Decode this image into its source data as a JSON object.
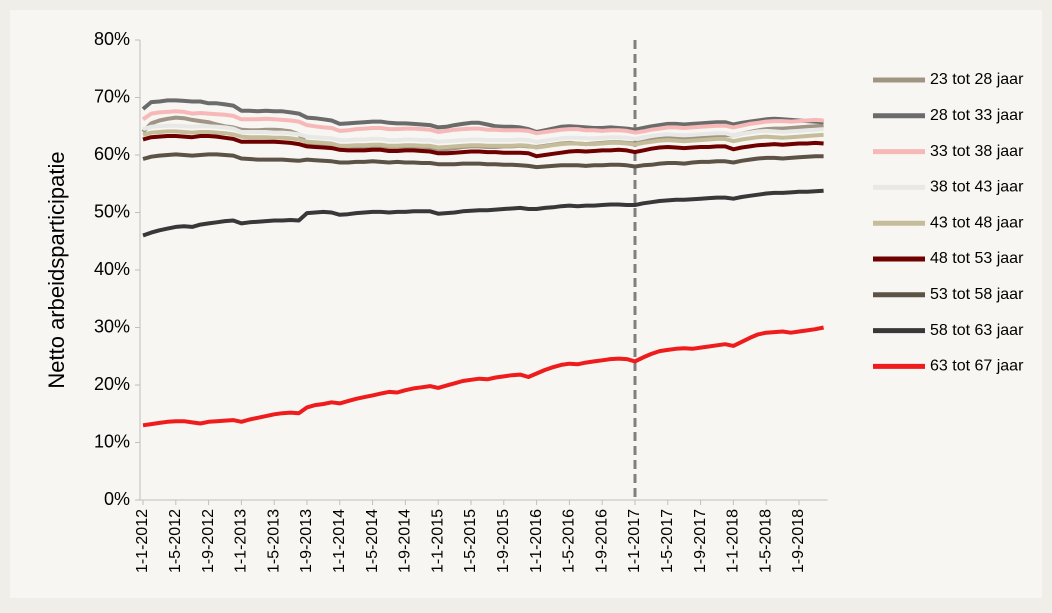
{
  "chart_data": {
    "type": "line",
    "y_label": "Netto arbeidsparticipatie",
    "categories": [
      "1-1-2012",
      null,
      null,
      null,
      "1-5-2012",
      null,
      null,
      null,
      "1-9-2012",
      null,
      null,
      null,
      "1-1-2013",
      null,
      null,
      null,
      "1-5-2013",
      null,
      null,
      null,
      "1-9-2013",
      null,
      null,
      null,
      "1-1-2014",
      null,
      null,
      null,
      "1-5-2014",
      null,
      null,
      null,
      "1-9-2014",
      null,
      null,
      null,
      "1-1-2015",
      null,
      null,
      null,
      "1-5-2015",
      null,
      null,
      null,
      "1-9-2015",
      null,
      null,
      null,
      "1-1-2016",
      null,
      null,
      null,
      "1-5-2016",
      null,
      null,
      null,
      "1-9-2016",
      null,
      null,
      null,
      "1-1-2017",
      null,
      null,
      null,
      "1-5-2017",
      null,
      null,
      null,
      "1-9-2017",
      null,
      null,
      null,
      "1-1-2018",
      null,
      null,
      null,
      "1-5-2018",
      null,
      null,
      null,
      "1-9-2018",
      null,
      null,
      null
    ],
    "ylim": [
      0,
      80
    ],
    "yticks": [
      {
        "value": 0,
        "label": "0%"
      },
      {
        "value": 10,
        "label": "10%"
      },
      {
        "value": 20,
        "label": "20%"
      },
      {
        "value": 30,
        "label": "30%"
      },
      {
        "value": 40,
        "label": "40%"
      },
      {
        "value": 50,
        "label": "50%"
      },
      {
        "value": 60,
        "label": "60%"
      },
      {
        "value": 70,
        "label": "70%"
      },
      {
        "value": 80,
        "label": "80%"
      }
    ],
    "reference_line_at": "1-1-2017",
    "legend": "right",
    "series": [
      {
        "name": "23 tot 28 jaar",
        "color": "#a09585",
        "values": [
          64.0,
          65.5,
          66.0,
          66.3,
          66.5,
          66.4,
          66.1,
          65.9,
          65.7,
          65.3,
          65.0,
          64.8,
          64.4,
          64.3,
          64.3,
          64.4,
          64.4,
          64.3,
          64.1,
          63.6,
          62.0,
          61.7,
          61.5,
          61.3,
          60.9,
          61.0,
          61.1,
          61.2,
          61.3,
          61.3,
          61.2,
          61.1,
          61.2,
          61.2,
          61.1,
          61.1,
          60.8,
          61.0,
          61.2,
          61.4,
          61.5,
          61.5,
          61.4,
          61.4,
          61.5,
          61.5,
          61.6,
          61.5,
          61.4,
          61.6,
          61.8,
          62.0,
          62.1,
          62.0,
          61.9,
          62.0,
          62.1,
          62.2,
          62.2,
          62.1,
          62.0,
          62.3,
          62.6,
          62.8,
          62.9,
          62.9,
          62.8,
          62.9,
          63.1,
          63.2,
          63.4,
          63.5,
          63.4,
          63.7,
          64.0,
          64.3,
          64.5,
          64.6,
          64.6,
          64.7,
          64.8,
          64.9,
          65.0,
          65.1
        ]
      },
      {
        "name": "28 tot 33 jaar",
        "color": "#6b6b6b",
        "values": [
          68.0,
          69.2,
          69.3,
          69.5,
          69.5,
          69.4,
          69.3,
          69.3,
          69.0,
          69.0,
          68.8,
          68.6,
          67.7,
          67.7,
          67.6,
          67.7,
          67.6,
          67.6,
          67.4,
          67.2,
          66.5,
          66.4,
          66.2,
          66.0,
          65.4,
          65.5,
          65.6,
          65.7,
          65.8,
          65.8,
          65.6,
          65.5,
          65.5,
          65.4,
          65.3,
          65.2,
          64.8,
          64.9,
          65.2,
          65.4,
          65.6,
          65.6,
          65.3,
          65.0,
          64.9,
          64.9,
          64.8,
          64.5,
          64.0,
          64.3,
          64.6,
          64.9,
          65.0,
          64.9,
          64.8,
          64.7,
          64.7,
          64.8,
          64.7,
          64.6,
          64.4,
          64.7,
          65.0,
          65.2,
          65.4,
          65.4,
          65.3,
          65.4,
          65.5,
          65.6,
          65.7,
          65.7,
          65.3,
          65.6,
          65.8,
          66.0,
          66.2,
          66.3,
          66.2,
          66.1,
          66.0,
          65.9,
          65.8,
          65.7
        ]
      },
      {
        "name": "33 tot 38 jaar",
        "color": "#f7b8b8",
        "values": [
          66.2,
          67.2,
          67.4,
          67.5,
          67.6,
          67.5,
          67.2,
          67.3,
          67.2,
          67.1,
          67.0,
          66.8,
          66.2,
          66.2,
          66.2,
          66.3,
          66.2,
          66.1,
          66.0,
          65.8,
          65.2,
          65.0,
          64.8,
          64.7,
          64.2,
          64.3,
          64.5,
          64.6,
          64.7,
          64.7,
          64.5,
          64.5,
          64.6,
          64.6,
          64.5,
          64.4,
          64.0,
          64.2,
          64.4,
          64.5,
          64.6,
          64.6,
          64.4,
          64.4,
          64.3,
          64.3,
          64.3,
          64.2,
          63.8,
          64.0,
          64.2,
          64.4,
          64.5,
          64.5,
          64.3,
          64.3,
          64.2,
          64.3,
          64.3,
          64.2,
          63.9,
          64.1,
          64.4,
          64.6,
          64.8,
          64.8,
          64.7,
          64.8,
          64.9,
          65.0,
          65.1,
          65.1,
          64.8,
          65.1,
          65.4,
          65.6,
          65.8,
          65.9,
          65.9,
          65.8,
          65.9,
          66.0,
          66.1,
          66.0
        ]
      },
      {
        "name": "38 tot 43 jaar",
        "color": "#e8e8e6",
        "values": [
          64.5,
          64.9,
          65.0,
          65.1,
          65.1,
          65.0,
          64.9,
          65.0,
          65.0,
          64.9,
          64.8,
          64.6,
          64.0,
          64.0,
          64.0,
          64.0,
          63.9,
          63.9,
          63.8,
          63.6,
          63.2,
          63.1,
          63.0,
          62.9,
          62.6,
          62.6,
          62.7,
          62.7,
          62.8,
          62.8,
          62.6,
          62.6,
          62.7,
          62.7,
          62.6,
          62.6,
          62.3,
          62.4,
          62.5,
          62.6,
          62.7,
          62.7,
          62.6,
          62.6,
          62.6,
          62.6,
          62.7,
          62.6,
          62.3,
          62.5,
          62.7,
          62.9,
          63.0,
          63.0,
          62.9,
          62.9,
          63.0,
          63.1,
          63.1,
          63.0,
          62.8,
          63.1,
          63.3,
          63.5,
          63.6,
          63.5,
          63.4,
          63.5,
          63.6,
          63.7,
          63.8,
          63.8,
          63.4,
          63.7,
          63.9,
          64.1,
          64.2,
          64.1,
          64.0,
          64.1,
          64.2,
          64.3,
          64.4,
          64.5
        ]
      },
      {
        "name": "43 tot 48 jaar",
        "color": "#c5bc9a",
        "values": [
          63.5,
          63.9,
          64.0,
          64.1,
          64.1,
          64.0,
          63.9,
          64.0,
          64.0,
          63.9,
          63.8,
          63.6,
          63.2,
          63.1,
          63.1,
          63.1,
          63.0,
          63.0,
          62.9,
          62.7,
          62.3,
          62.2,
          62.1,
          62.0,
          61.6,
          61.6,
          61.7,
          61.7,
          61.8,
          61.8,
          61.6,
          61.6,
          61.7,
          61.7,
          61.6,
          61.6,
          61.3,
          61.4,
          61.5,
          61.6,
          61.7,
          61.7,
          61.6,
          61.6,
          61.6,
          61.6,
          61.7,
          61.6,
          61.3,
          61.5,
          61.7,
          61.9,
          62.0,
          62.0,
          61.9,
          61.9,
          62.0,
          62.1,
          62.1,
          62.0,
          61.8,
          62.1,
          62.3,
          62.5,
          62.6,
          62.5,
          62.4,
          62.5,
          62.6,
          62.7,
          62.8,
          62.8,
          62.4,
          62.7,
          62.9,
          63.1,
          63.2,
          63.1,
          63.0,
          63.1,
          63.2,
          63.3,
          63.4,
          63.5
        ]
      },
      {
        "name": "48 tot 53 jaar",
        "color": "#6e0000",
        "values": [
          62.7,
          63.1,
          63.2,
          63.3,
          63.3,
          63.2,
          63.1,
          63.3,
          63.3,
          63.2,
          63.0,
          62.8,
          62.3,
          62.3,
          62.3,
          62.3,
          62.3,
          62.2,
          62.1,
          61.9,
          61.5,
          61.4,
          61.3,
          61.2,
          60.9,
          60.8,
          60.8,
          60.8,
          60.9,
          60.9,
          60.7,
          60.7,
          60.8,
          60.8,
          60.7,
          60.6,
          60.3,
          60.3,
          60.4,
          60.5,
          60.6,
          60.6,
          60.5,
          60.5,
          60.4,
          60.4,
          60.4,
          60.3,
          59.8,
          60.0,
          60.2,
          60.4,
          60.6,
          60.7,
          60.6,
          60.7,
          60.8,
          60.8,
          60.9,
          60.8,
          60.5,
          60.8,
          61.1,
          61.3,
          61.4,
          61.3,
          61.2,
          61.3,
          61.4,
          61.4,
          61.5,
          61.5,
          61.0,
          61.3,
          61.5,
          61.7,
          61.8,
          61.9,
          61.8,
          61.9,
          62.0,
          62.0,
          62.1,
          62.0
        ]
      },
      {
        "name": "53 tot 58 jaar",
        "color": "#5c5346",
        "values": [
          59.3,
          59.7,
          59.9,
          60.0,
          60.1,
          60.0,
          59.9,
          60.0,
          60.1,
          60.1,
          60.0,
          59.9,
          59.4,
          59.3,
          59.2,
          59.2,
          59.2,
          59.2,
          59.1,
          59.0,
          59.2,
          59.1,
          59.0,
          58.9,
          58.7,
          58.7,
          58.8,
          58.8,
          58.9,
          58.8,
          58.7,
          58.8,
          58.7,
          58.7,
          58.6,
          58.6,
          58.4,
          58.4,
          58.4,
          58.5,
          58.5,
          58.5,
          58.4,
          58.4,
          58.3,
          58.3,
          58.2,
          58.1,
          57.9,
          58.0,
          58.1,
          58.2,
          58.2,
          58.2,
          58.1,
          58.2,
          58.2,
          58.3,
          58.3,
          58.2,
          58.0,
          58.2,
          58.3,
          58.5,
          58.6,
          58.6,
          58.5,
          58.7,
          58.8,
          58.8,
          58.9,
          58.9,
          58.7,
          59.0,
          59.2,
          59.4,
          59.5,
          59.5,
          59.4,
          59.5,
          59.6,
          59.7,
          59.8,
          59.8
        ]
      },
      {
        "name": "58 tot 63 jaar",
        "color": "#383838",
        "values": [
          46.0,
          46.5,
          46.9,
          47.2,
          47.5,
          47.6,
          47.5,
          47.9,
          48.1,
          48.3,
          48.5,
          48.6,
          48.1,
          48.3,
          48.4,
          48.5,
          48.6,
          48.6,
          48.7,
          48.6,
          49.9,
          50.0,
          50.1,
          50.0,
          49.6,
          49.7,
          49.9,
          50.0,
          50.1,
          50.1,
          50.0,
          50.1,
          50.1,
          50.2,
          50.2,
          50.2,
          49.8,
          49.9,
          50.0,
          50.2,
          50.3,
          50.4,
          50.4,
          50.5,
          50.6,
          50.7,
          50.8,
          50.6,
          50.6,
          50.8,
          50.9,
          51.1,
          51.2,
          51.1,
          51.2,
          51.2,
          51.3,
          51.4,
          51.4,
          51.3,
          51.3,
          51.6,
          51.8,
          52.0,
          52.1,
          52.2,
          52.2,
          52.3,
          52.4,
          52.5,
          52.6,
          52.6,
          52.4,
          52.7,
          52.9,
          53.1,
          53.3,
          53.4,
          53.4,
          53.5,
          53.6,
          53.6,
          53.7,
          53.8
        ]
      },
      {
        "name": "63 tot 67 jaar",
        "color": "#ee1c1c",
        "values": [
          13.0,
          13.2,
          13.4,
          13.6,
          13.7,
          13.7,
          13.5,
          13.3,
          13.6,
          13.7,
          13.8,
          13.9,
          13.6,
          14.0,
          14.3,
          14.6,
          14.9,
          15.1,
          15.2,
          15.1,
          16.1,
          16.5,
          16.7,
          17.0,
          16.8,
          17.2,
          17.6,
          17.9,
          18.2,
          18.5,
          18.8,
          18.7,
          19.1,
          19.4,
          19.6,
          19.8,
          19.5,
          19.9,
          20.3,
          20.7,
          20.9,
          21.1,
          21.0,
          21.3,
          21.5,
          21.7,
          21.8,
          21.4,
          22.0,
          22.6,
          23.1,
          23.5,
          23.7,
          23.6,
          23.9,
          24.1,
          24.3,
          24.5,
          24.6,
          24.5,
          24.1,
          24.8,
          25.4,
          25.9,
          26.1,
          26.3,
          26.4,
          26.3,
          26.5,
          26.7,
          26.9,
          27.1,
          26.8,
          27.5,
          28.2,
          28.8,
          29.1,
          29.2,
          29.3,
          29.1,
          29.3,
          29.5,
          29.7,
          30.0
        ]
      }
    ]
  }
}
